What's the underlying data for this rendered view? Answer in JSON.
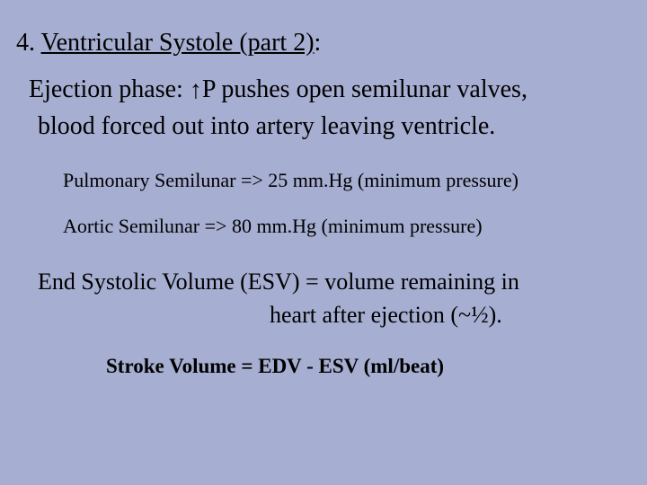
{
  "background_color": "#a6aed1",
  "text_color": "#000000",
  "heading": {
    "number": "4. ",
    "title": "Ventricular Systole (part 2)",
    "colon": ":"
  },
  "para1": {
    "line1_a": "Ejection phase: ",
    "arrow": "↑",
    "line1_b": "P pushes open semilunar valves,",
    "line2": "blood forced out into artery leaving ventricle."
  },
  "sub1": "Pulmonary Semilunar => 25 mm.Hg (minimum pressure)",
  "sub2": "Aortic Semilunar => 80 mm.Hg (minimum pressure)",
  "para2": {
    "line1": "End Systolic Volume (ESV) = volume remaining in",
    "line2": "heart after ejection (~½)."
  },
  "formula": "Stroke Volume = EDV -  ESV  (ml/beat)"
}
